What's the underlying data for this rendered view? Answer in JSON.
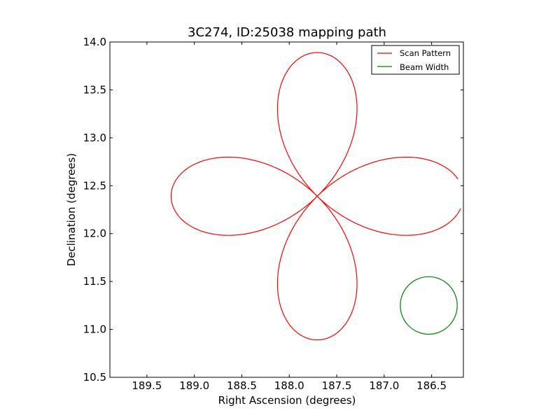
{
  "chart_data": {
    "type": "line",
    "title": "3C274, ID:25038 mapping path",
    "xlabel": "Right Ascension (degrees)",
    "ylabel": "Declination (degrees)",
    "x_reversed": true,
    "xlim": [
      189.89,
      186.165
    ],
    "ylim": [
      10.5,
      14.0
    ],
    "xticks": [
      "189.5",
      "189.0",
      "188.5",
      "188.0",
      "187.5",
      "187.0",
      "186.5"
    ],
    "xtick_values": [
      189.5,
      189.0,
      188.5,
      188.0,
      187.5,
      187.0,
      186.5
    ],
    "yticks": [
      "10.5",
      "11.0",
      "11.5",
      "12.0",
      "12.5",
      "13.0",
      "13.5",
      "14.0"
    ],
    "ytick_values": [
      10.5,
      11.0,
      11.5,
      12.0,
      12.5,
      13.0,
      13.5,
      14.0
    ],
    "grid": false,
    "legend_position": "top-right",
    "series": [
      {
        "name": "Scan Pattern",
        "color": "#ff0000",
        "shape": "four-petal rose",
        "center": [
          187.705,
          12.39
        ],
        "petal_length_ra": 1.54,
        "petal_length_dec": 1.5,
        "start_angle_deg": 185,
        "end_angle_deg": 533,
        "points": []
      },
      {
        "name": "Beam Width",
        "color": "#008000",
        "shape": "circle",
        "center": [
          186.53,
          11.25
        ],
        "radius_deg": 0.3
      }
    ]
  }
}
